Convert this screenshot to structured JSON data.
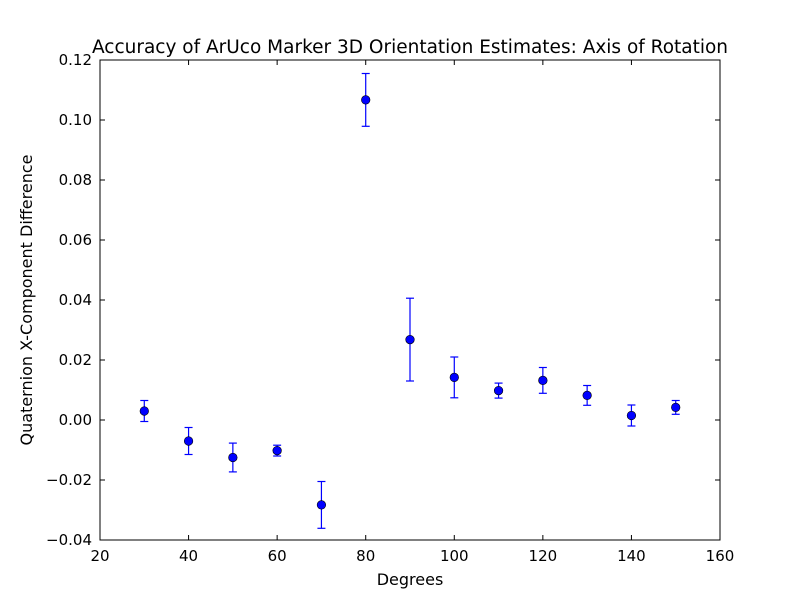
{
  "chart_data": {
    "type": "scatter",
    "title": "Accuracy of ArUco Marker 3D Orientation Estimates: Axis of Rotation",
    "xlabel": "Degrees",
    "ylabel": "Quaternion X-Component Difference",
    "xlim": [
      20,
      160
    ],
    "ylim": [
      -0.04,
      0.12
    ],
    "xticks": [
      20,
      40,
      60,
      80,
      100,
      120,
      140,
      160
    ],
    "xtick_labels": [
      "20",
      "40",
      "60",
      "80",
      "100",
      "120",
      "140",
      "160"
    ],
    "yticks": [
      -0.04,
      -0.02,
      0.0,
      0.02,
      0.04,
      0.06,
      0.08,
      0.1,
      0.12
    ],
    "ytick_labels": [
      "−0.04",
      "−0.02",
      "0.00",
      "0.02",
      "0.04",
      "0.06",
      "0.08",
      "0.10",
      "0.12"
    ],
    "grid": false,
    "legend": false,
    "marker_color": "#0000ff",
    "errorbar_color": "#0000ff",
    "points": [
      {
        "x": 30,
        "y": 0.003,
        "err": 0.0035
      },
      {
        "x": 40,
        "y": -0.007,
        "err": 0.0045
      },
      {
        "x": 50,
        "y": -0.0125,
        "err": 0.0048
      },
      {
        "x": 60,
        "y": -0.0102,
        "err": 0.0018
      },
      {
        "x": 70,
        "y": -0.0283,
        "err": 0.0078
      },
      {
        "x": 80,
        "y": 0.1067,
        "err": 0.0088
      },
      {
        "x": 90,
        "y": 0.0268,
        "err": 0.0138
      },
      {
        "x": 100,
        "y": 0.0142,
        "err": 0.0068
      },
      {
        "x": 110,
        "y": 0.0098,
        "err": 0.0025
      },
      {
        "x": 120,
        "y": 0.0132,
        "err": 0.0043
      },
      {
        "x": 130,
        "y": 0.0082,
        "err": 0.0033
      },
      {
        "x": 140,
        "y": 0.0015,
        "err": 0.0035
      },
      {
        "x": 150,
        "y": 0.0042,
        "err": 0.0023
      }
    ]
  }
}
